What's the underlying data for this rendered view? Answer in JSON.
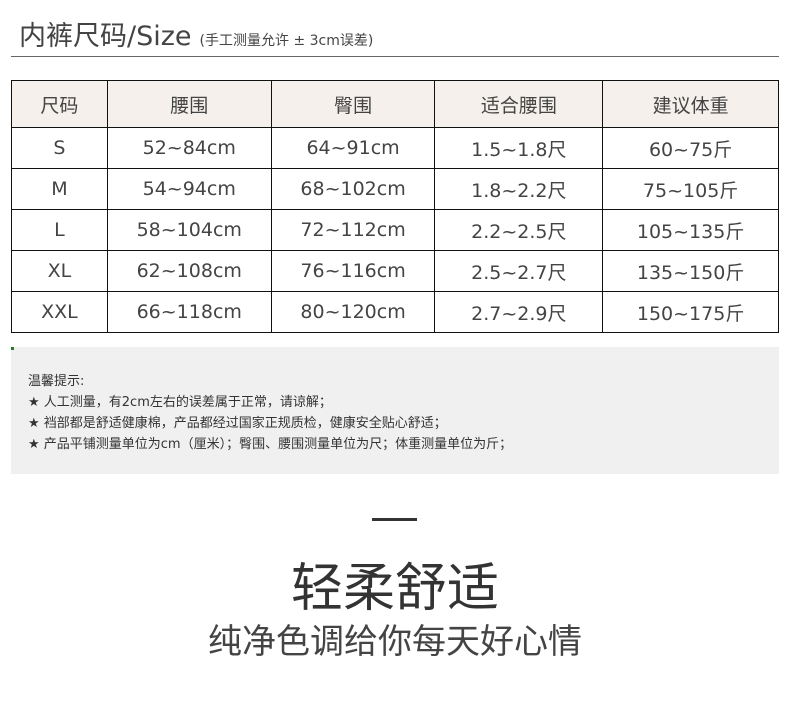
{
  "header": {
    "title": "内裤尺码/Size",
    "note": "(手工测量允许 ± 3cm误差)"
  },
  "table": {
    "headers": [
      "尺码",
      "腰围",
      "臀围",
      "适合腰围",
      "建议体重"
    ],
    "rows": [
      [
        "S",
        "52~84cm",
        "64~91cm",
        "1.5~1.8尺",
        "60~75斤"
      ],
      [
        "M",
        "54~94cm",
        "68~102cm",
        "1.8~2.2尺",
        "75~105斤"
      ],
      [
        "L",
        "58~104cm",
        "72~112cm",
        "2.2~2.5尺",
        "105~135斤"
      ],
      [
        "XL",
        "62~108cm",
        "76~116cm",
        "2.5~2.7尺",
        "135~150斤"
      ],
      [
        "XXL",
        "66~118cm",
        "80~120cm",
        "2.7~2.9尺",
        "150~175斤"
      ]
    ]
  },
  "notice": {
    "title": "温馨提示:",
    "items": [
      "★ 人工测量，有2cm左右的误差属于正常，请谅解；",
      "★ 裆部都是舒适健康棉，产品都经过国家正规质检，健康安全贴心舒适；",
      "★ 产品平铺测量单位为cm（厘米）；臀围、腰围测量单位为尺；体重测量单位为斤；"
    ]
  },
  "promo": {
    "title": "轻柔舒适",
    "subtitle": "纯净色调给你每天好心情"
  }
}
